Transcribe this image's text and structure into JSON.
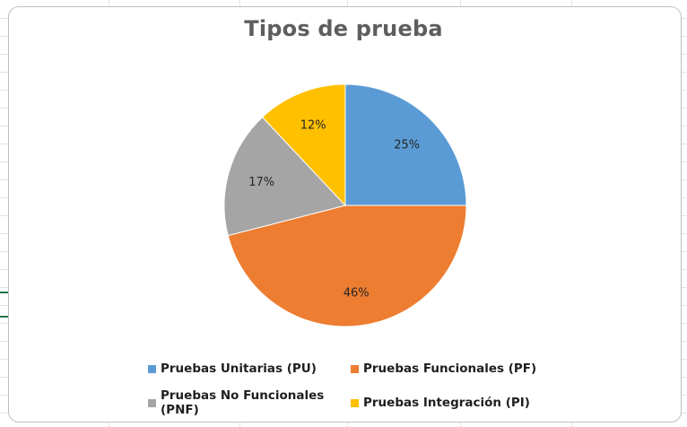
{
  "chart_data": {
    "type": "pie",
    "title": "Tipos de prueba",
    "categories": [
      "Pruebas Unitarias (PU)",
      "Pruebas Funcionales (PF)",
      "Pruebas No Funcionales (PNF)",
      "Pruebas Integración (PI)"
    ],
    "values": [
      25,
      46,
      17,
      12
    ],
    "data_labels": [
      "25%",
      "46%",
      "17%",
      "12%"
    ],
    "colors": [
      "#5b9bd5",
      "#ed7d31",
      "#a5a5a5",
      "#ffc000"
    ],
    "legend_position": "bottom"
  }
}
